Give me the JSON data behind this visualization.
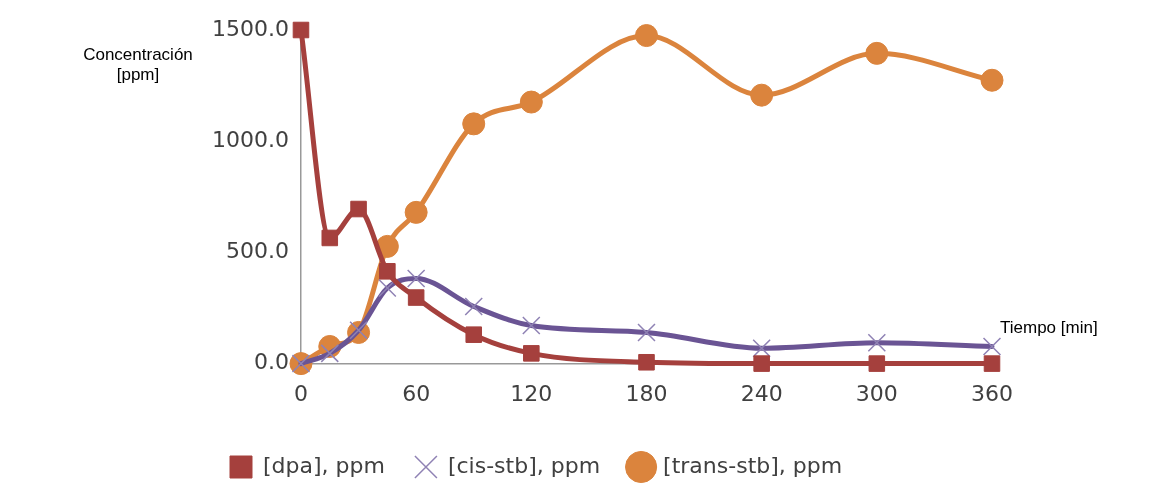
{
  "chart_data": {
    "type": "line",
    "xlabel": "Tiempo [min]",
    "ylabel": "Concentración [ppm]",
    "x": [
      0,
      15,
      30,
      45,
      60,
      90,
      120,
      180,
      240,
      300,
      360
    ],
    "series": [
      {
        "name": "[dpa], ppm",
        "color": "#a5403d",
        "marker": "square",
        "values": [
          1500,
          565,
          695,
          415,
          297,
          130,
          46,
          6,
          0,
          0,
          0
        ]
      },
      {
        "name": "[cis-stb], ppm",
        "color": "#6a5494",
        "marker": "cross",
        "values": [
          0,
          46,
          150,
          340,
          383,
          257,
          171,
          140,
          69,
          94,
          77
        ]
      },
      {
        "name": "[trans-stb], ppm",
        "color": "#db843d",
        "marker": "circle",
        "values": [
          0,
          77,
          140,
          527,
          680,
          1078,
          1176,
          1475,
          1207,
          1395,
          1274
        ]
      }
    ],
    "xlim": [
      0,
      360
    ],
    "xticks": [
      0,
      60,
      120,
      180,
      240,
      300,
      360
    ],
    "ylim": [
      0,
      1500
    ],
    "yticks": [
      {
        "value": 0,
        "label": "0.0"
      },
      {
        "value": 500,
        "label": "500.0"
      },
      {
        "value": 1000,
        "label": "1000.0"
      },
      {
        "value": 1500,
        "label": "1500.0"
      }
    ],
    "grid": false,
    "legend": "bottom"
  }
}
